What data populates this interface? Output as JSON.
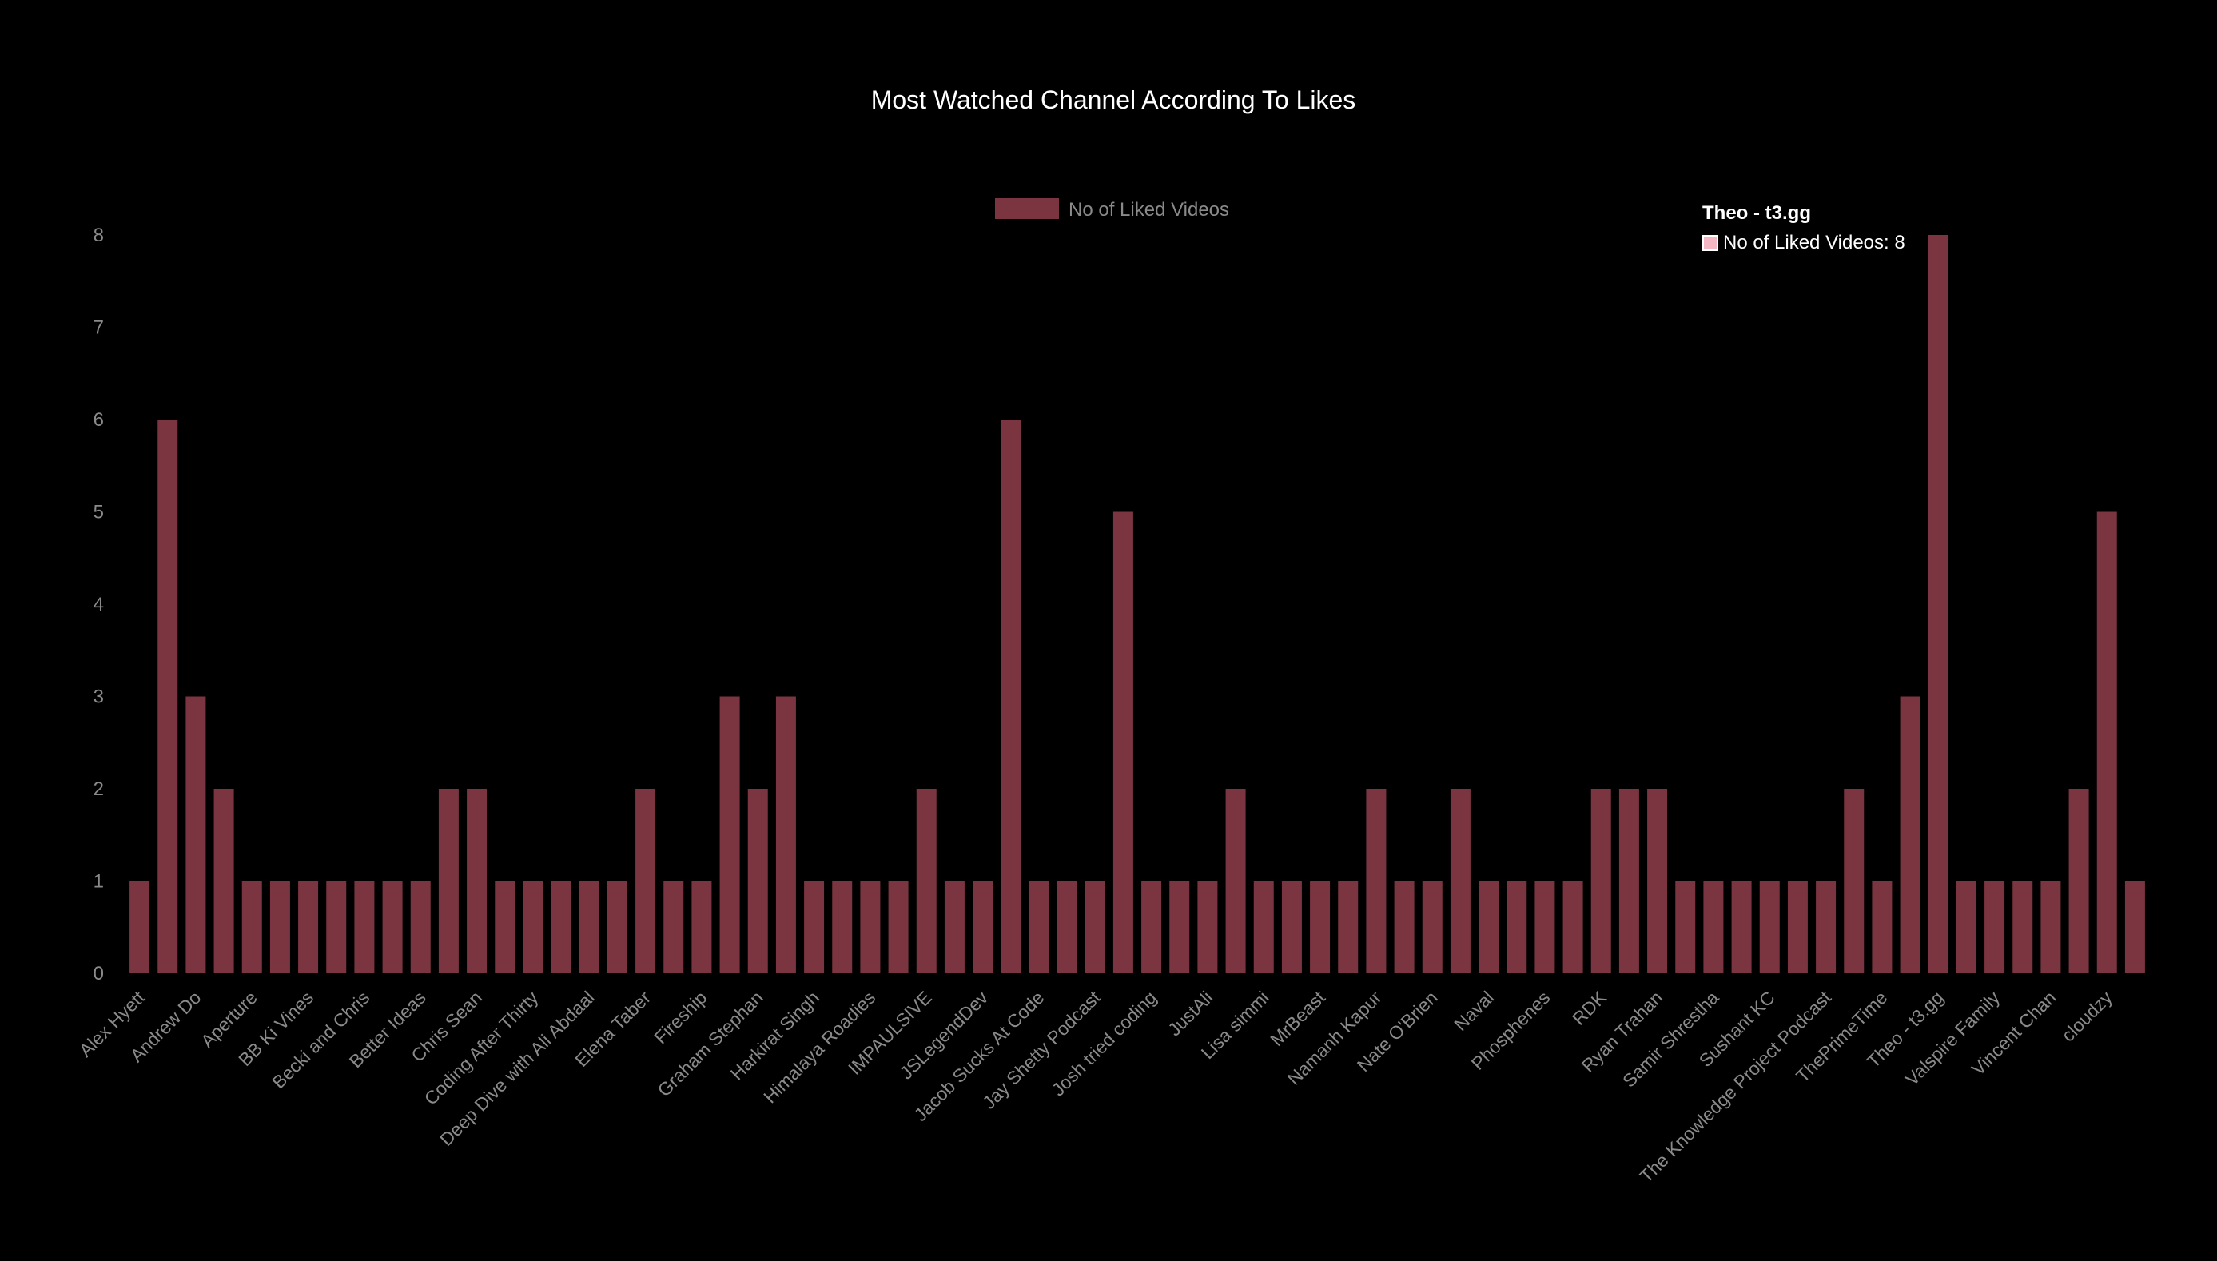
{
  "chart_data": {
    "type": "bar",
    "title": "Most Watched Channel According To Likes",
    "legend": {
      "position": "top",
      "entries": [
        "No of Liked Videos"
      ]
    },
    "bar_color": "#7a3540",
    "highlight_color": "#f4b6c2",
    "ylim": [
      0,
      8
    ],
    "y_ticks": [
      0,
      1,
      2,
      3,
      4,
      5,
      6,
      7,
      8
    ],
    "grid": false,
    "categories": [
      "Alex Hyett",
      "",
      "Andrew Do",
      "",
      "Aperture",
      "",
      "BB Ki Vines",
      "",
      "Becki and Chris",
      "",
      "Better Ideas",
      "",
      "Chris Sean",
      "",
      "Coding After Thirty",
      "",
      "Deep Dive with Ali Abdaal",
      "",
      "Elena Taber",
      "",
      "Fireship",
      "",
      "Graham Stephan",
      "",
      "Harkirat Singh",
      "",
      "Himalaya Roadies",
      "",
      "IMPAULSIVE",
      "",
      "JSLegendDev",
      "",
      "Jacob Sucks At Code",
      "",
      "Jay Shetty Podcast",
      "",
      "Josh tried coding",
      "",
      "JustAli",
      "",
      "Lisa simmi",
      "",
      "MrBeast",
      "",
      "Namanh Kapur",
      "",
      "Nate O'Brien",
      "",
      "Naval",
      "",
      "Phosphenes",
      "",
      "RDK",
      "",
      "Ryan Trahan",
      "",
      "Samir Shrestha",
      "",
      "Sushant KC",
      "",
      "The Knowledge Project Podcast",
      "",
      "ThePrimeTime",
      "",
      "Theo - t3.gg",
      "",
      "Valspire Family",
      "",
      "Vincent Chan",
      "",
      "cloudzy",
      ""
    ],
    "series": [
      {
        "name": "No of Liked Videos",
        "values": [
          1,
          6,
          3,
          2,
          1,
          1,
          1,
          1,
          1,
          1,
          1,
          2,
          2,
          1,
          1,
          1,
          1,
          1,
          2,
          1,
          1,
          3,
          2,
          3,
          1,
          1,
          1,
          1,
          2,
          1,
          1,
          6,
          1,
          1,
          1,
          5,
          1,
          1,
          1,
          2,
          1,
          1,
          1,
          1,
          2,
          1,
          1,
          2,
          1,
          1,
          1,
          1,
          2,
          2,
          2,
          1,
          1,
          1,
          1,
          1,
          1,
          2,
          1,
          3,
          8,
          1,
          1,
          1,
          1,
          2,
          5,
          1
        ]
      }
    ],
    "highlight_index": 64,
    "tooltip": {
      "title": "Theo - t3.gg",
      "label": "No of Liked Videos: 8"
    }
  }
}
